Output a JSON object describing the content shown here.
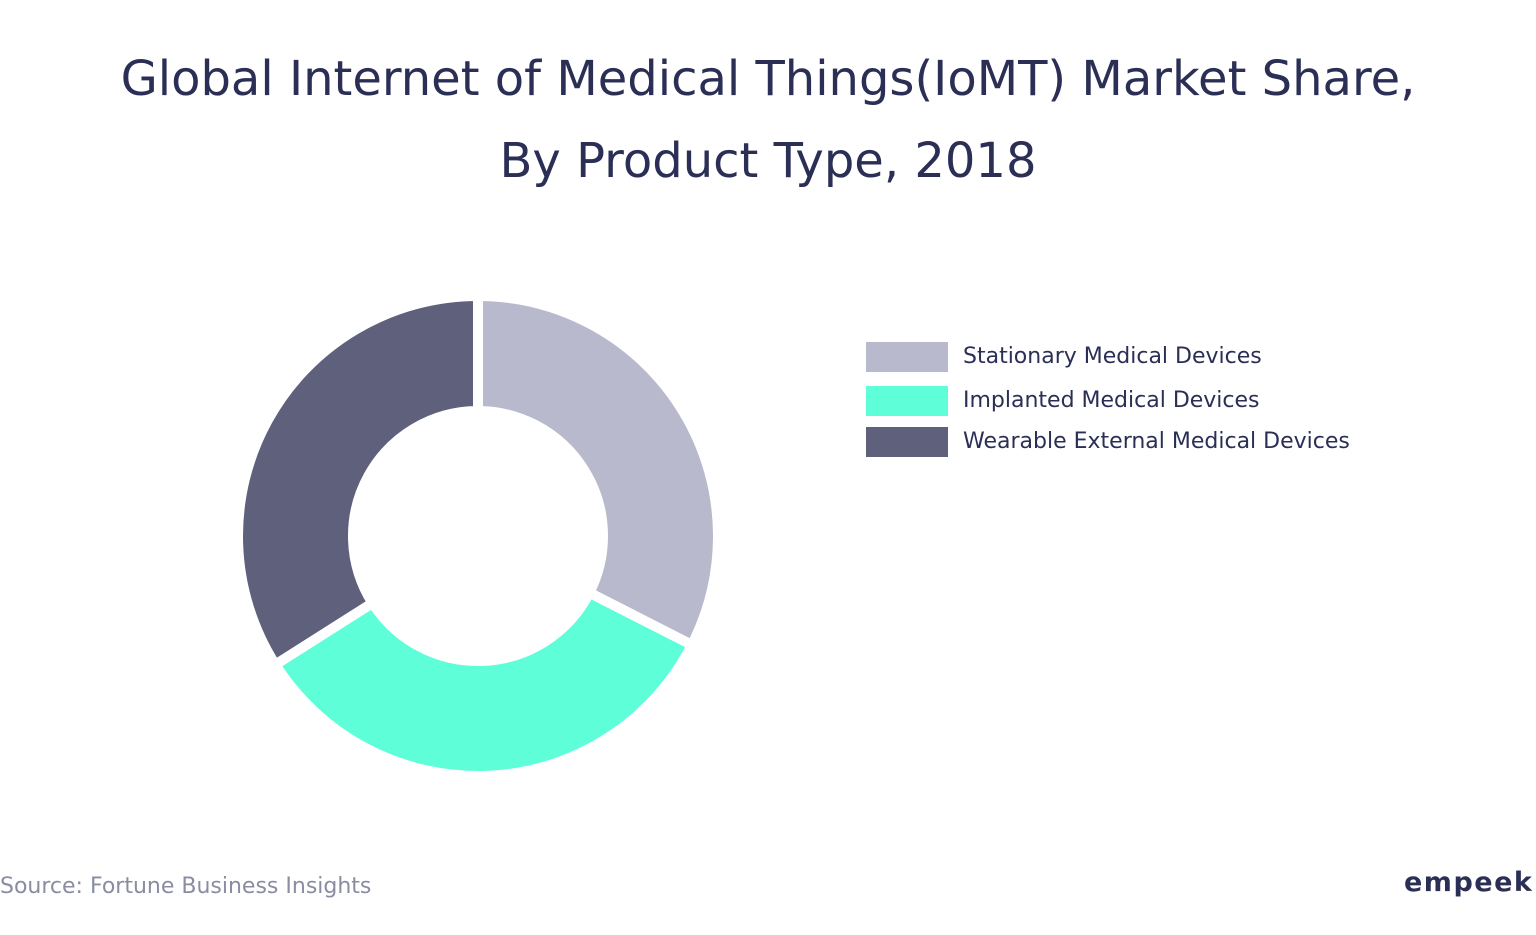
{
  "chart_data": {
    "type": "pie",
    "title": "Global Internet of Medical Things(IoMT) Market Share, By Product Type, 2018",
    "title_lines": [
      "Global Internet of Medical Things(IoMT) Market Share,",
      "By Product Type, 2018"
    ],
    "donut": true,
    "legend_position": "right",
    "categories": [
      "Stationary Medical Devices",
      "Implanted Medical Devices",
      "Wearable External Medical Devices"
    ],
    "values": [
      32.5,
      33.5,
      34.0
    ],
    "colors": [
      "#b8b9cc",
      "#5effd8",
      "#5f617c"
    ]
  },
  "source": "Source: Fortune Business Insights",
  "logo": "empeek"
}
